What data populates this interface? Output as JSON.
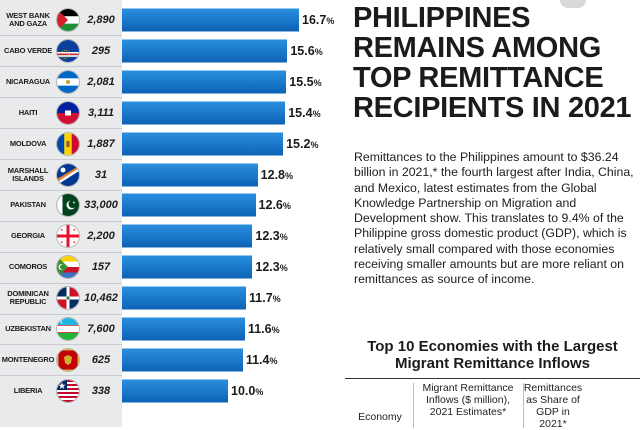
{
  "headline": "PHILIPPINES REMAINS AMONG TOP REMITTANCE RECIPIENTS IN 2021",
  "body": "Remittances to the Philippines amount to $36.24 billion in 2021,* the fourth largest after India, China, and Mexico, latest estimates from the Global Knowledge Partnership on Migration and Development show. This translates to 9.4% of the Philippine gross domestic product (GDP), which is relatively small compared with those economies receiving smaller amounts but are more reliant on remittances as source of income.",
  "table": {
    "title": "Top 10 Economies with the Largest Migrant Remittance Inflows",
    "headers": {
      "economy": "Economy",
      "inflows": "Migrant Remittance Inflows ($ million), 2021 Estimates*",
      "share": "Remittances as Share of GDP in 2021*"
    }
  },
  "flags": {
    "west_bank_gaza": "palestine-flag-icon",
    "cabo_verde": "cabo-verde-flag-icon",
    "nicaragua": "nicaragua-flag-icon",
    "haiti": "haiti-flag-icon",
    "moldova": "moldova-flag-icon",
    "marshall_islands": "marshall-islands-flag-icon",
    "pakistan": "pakistan-flag-icon",
    "georgia": "georgia-flag-icon",
    "comoros": "comoros-flag-icon",
    "dominican_republic": "dominican-republic-flag-icon",
    "uzbekistan": "uzbekistan-flag-icon",
    "montenegro": "montenegro-flag-icon",
    "liberia": "liberia-flag-icon"
  },
  "colors": {
    "bar_top": "#2a8fe0",
    "bar_bottom": "#0d62b4",
    "left_panel": "#e9eaec"
  },
  "chart_data": {
    "type": "bar",
    "orientation": "horizontal",
    "categories": [
      "WEST BANK AND GAZA",
      "CABO VERDE",
      "NICARAGUA",
      "HAITI",
      "MOLDOVA",
      "MARSHALL ISLANDS",
      "PAKISTAN",
      "GEORGIA",
      "COMOROS",
      "DOMINICAN REPUBLIC",
      "UZBEKISTAN",
      "MONTENEGRO",
      "LIBERIA"
    ],
    "remittances": [
      "2,890",
      "295",
      "2,081",
      "3,111",
      "1,887",
      "31",
      "33,000",
      "2,200",
      "157",
      "10,462",
      "7,600",
      "625",
      "338"
    ],
    "values": [
      16.7,
      15.6,
      15.5,
      15.4,
      15.2,
      12.8,
      12.6,
      12.3,
      12.3,
      11.7,
      11.6,
      11.4,
      10.0
    ],
    "labels": [
      "16.7",
      "15.6",
      "15.5",
      "15.4",
      "15.2",
      "12.8",
      "12.6",
      "12.3",
      "12.3",
      "11.7",
      "11.6",
      "11.4",
      "10.0"
    ],
    "unit": "%",
    "grid": false
  }
}
